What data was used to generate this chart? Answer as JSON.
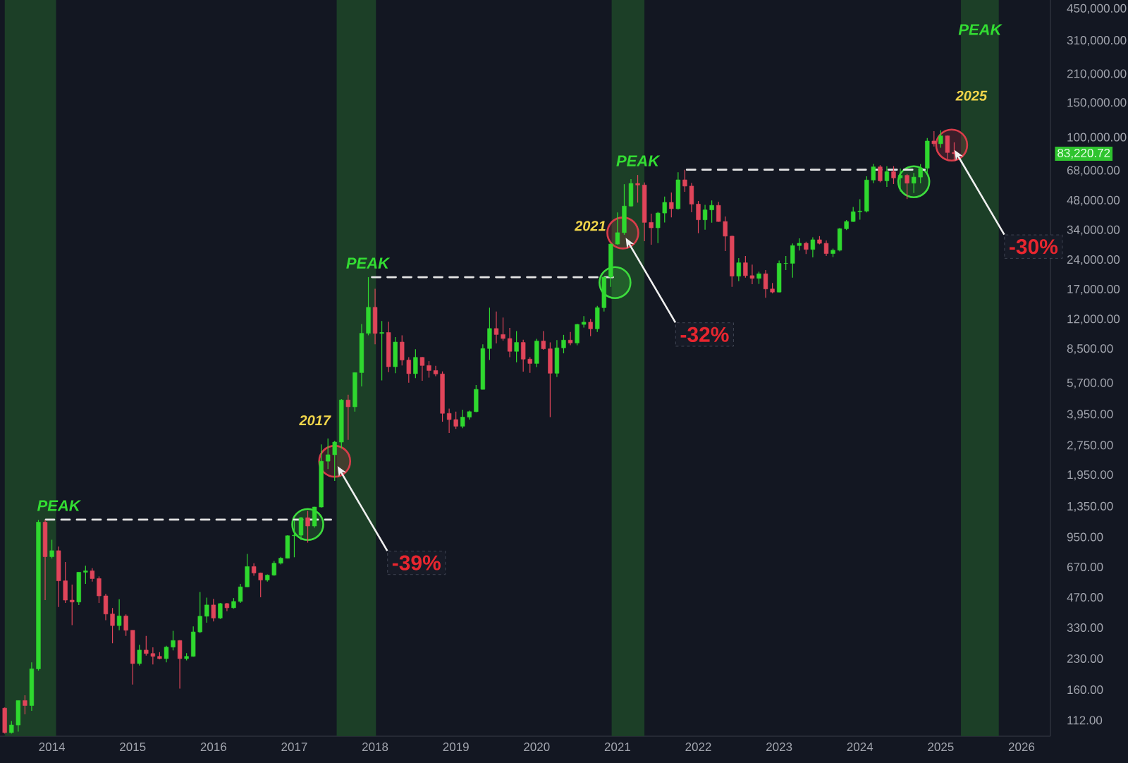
{
  "chart_data": {
    "type": "candlestick",
    "log": true,
    "xlim": [
      "2013-05-10",
      "2026-05-10"
    ],
    "ylim": [
      93,
      500000
    ],
    "xticks": [
      "2014",
      "2015",
      "2016",
      "2017",
      "2018",
      "2019",
      "2020",
      "2021",
      "2022",
      "2023",
      "2024",
      "2025",
      "2026"
    ],
    "yticks": [
      {
        "value": 112,
        "label": "112.00"
      },
      {
        "value": 160,
        "label": "160.00"
      },
      {
        "value": 230,
        "label": "230.00"
      },
      {
        "value": 330,
        "label": "330.00"
      },
      {
        "value": 470,
        "label": "470.00"
      },
      {
        "value": 670,
        "label": "670.00"
      },
      {
        "value": 950,
        "label": "950.00"
      },
      {
        "value": 1350,
        "label": "1,350.00"
      },
      {
        "value": 1950,
        "label": "1,950.00"
      },
      {
        "value": 2750,
        "label": "2,750.00"
      },
      {
        "value": 3950,
        "label": "3,950.00"
      },
      {
        "value": 5700,
        "label": "5,700.00"
      },
      {
        "value": 8500,
        "label": "8,500.00"
      },
      {
        "value": 12000,
        "label": "12,000.00"
      },
      {
        "value": 17000,
        "label": "17,000.00"
      },
      {
        "value": 24000,
        "label": "24,000.00"
      },
      {
        "value": 34000,
        "label": "34,000.00"
      },
      {
        "value": 48000,
        "label": "48,000.00"
      },
      {
        "value": 68000,
        "label": "68,000.00"
      },
      {
        "value": 100000,
        "label": "100,000.00"
      },
      {
        "value": 150000,
        "label": "150,000.00"
      },
      {
        "value": 210000,
        "label": "210,000.00"
      },
      {
        "value": 310000,
        "label": "310,000.00"
      },
      {
        "value": 450000,
        "label": "450,000.00"
      }
    ],
    "x": [
      "2013-06",
      "2013-07",
      "2013-08",
      "2013-09",
      "2013-10",
      "2013-11",
      "2013-12",
      "2014-01",
      "2014-02",
      "2014-03",
      "2014-04",
      "2014-05",
      "2014-06",
      "2014-07",
      "2014-08",
      "2014-09",
      "2014-10",
      "2014-11",
      "2014-12",
      "2015-01",
      "2015-02",
      "2015-03",
      "2015-04",
      "2015-05",
      "2015-06",
      "2015-07",
      "2015-08",
      "2015-09",
      "2015-10",
      "2015-11",
      "2015-12",
      "2016-01",
      "2016-02",
      "2016-03",
      "2016-04",
      "2016-05",
      "2016-06",
      "2016-07",
      "2016-08",
      "2016-09",
      "2016-10",
      "2016-11",
      "2016-12",
      "2017-01",
      "2017-02",
      "2017-03",
      "2017-04",
      "2017-05",
      "2017-06",
      "2017-07",
      "2017-08",
      "2017-09",
      "2017-10",
      "2017-11",
      "2017-12",
      "2018-01",
      "2018-02",
      "2018-03",
      "2018-04",
      "2018-05",
      "2018-06",
      "2018-07",
      "2018-08",
      "2018-09",
      "2018-10",
      "2018-11",
      "2018-12",
      "2019-01",
      "2019-02",
      "2019-03",
      "2019-04",
      "2019-05",
      "2019-06",
      "2019-07",
      "2019-08",
      "2019-09",
      "2019-10",
      "2019-11",
      "2019-12",
      "2020-01",
      "2020-02",
      "2020-03",
      "2020-04",
      "2020-05",
      "2020-06",
      "2020-07",
      "2020-08",
      "2020-09",
      "2020-10",
      "2020-11",
      "2020-12",
      "2021-01",
      "2021-02",
      "2021-03",
      "2021-04",
      "2021-05",
      "2021-06",
      "2021-07",
      "2021-08",
      "2021-09",
      "2021-10",
      "2021-11",
      "2021-12",
      "2022-01",
      "2022-02",
      "2022-03",
      "2022-04",
      "2022-05",
      "2022-06",
      "2022-07",
      "2022-08",
      "2022-09",
      "2022-10",
      "2022-11",
      "2022-12",
      "2023-01",
      "2023-02",
      "2023-03",
      "2023-04",
      "2023-05",
      "2023-06",
      "2023-07",
      "2023-08",
      "2023-09",
      "2023-10",
      "2023-11",
      "2023-12",
      "2024-01",
      "2024-02",
      "2024-03",
      "2024-04",
      "2024-05",
      "2024-06",
      "2024-07",
      "2024-08",
      "2024-09",
      "2024-10",
      "2024-11",
      "2024-12",
      "2025-01",
      "2025-02",
      "2025-03"
    ],
    "ohlc": [
      [
        129,
        130,
        96,
        97
      ],
      [
        97,
        111,
        96,
        106
      ],
      [
        106,
        141,
        98,
        141
      ],
      [
        141,
        150,
        120,
        133
      ],
      [
        133,
        220,
        125,
        204
      ],
      [
        204,
        1160,
        200,
        1130
      ],
      [
        1130,
        1163,
        455,
        755
      ],
      [
        755,
        920,
        740,
        810
      ],
      [
        810,
        850,
        420,
        570
      ],
      [
        570,
        710,
        440,
        455
      ],
      [
        455,
        545,
        340,
        445
      ],
      [
        445,
        630,
        430,
        630
      ],
      [
        630,
        680,
        550,
        640
      ],
      [
        640,
        660,
        565,
        585
      ],
      [
        585,
        600,
        440,
        478
      ],
      [
        478,
        490,
        360,
        387
      ],
      [
        387,
        415,
        275,
        338
      ],
      [
        338,
        460,
        320,
        378
      ],
      [
        378,
        385,
        300,
        320
      ],
      [
        320,
        320,
        170,
        217
      ],
      [
        217,
        270,
        212,
        254
      ],
      [
        254,
        300,
        238,
        244
      ],
      [
        244,
        262,
        215,
        236
      ],
      [
        236,
        248,
        228,
        230
      ],
      [
        230,
        267,
        220,
        263
      ],
      [
        263,
        318,
        253,
        284
      ],
      [
        284,
        285,
        162,
        230
      ],
      [
        230,
        245,
        225,
        236
      ],
      [
        236,
        335,
        235,
        314
      ],
      [
        314,
        500,
        310,
        377
      ],
      [
        377,
        468,
        350,
        430
      ],
      [
        430,
        462,
        355,
        369
      ],
      [
        369,
        440,
        365,
        437
      ],
      [
        437,
        440,
        400,
        416
      ],
      [
        416,
        466,
        412,
        448
      ],
      [
        448,
        550,
        440,
        531
      ],
      [
        531,
        780,
        530,
        673
      ],
      [
        673,
        700,
        605,
        624
      ],
      [
        624,
        627,
        470,
        575
      ],
      [
        575,
        615,
        565,
        609
      ],
      [
        609,
        718,
        605,
        700
      ],
      [
        700,
        754,
        690,
        742
      ],
      [
        742,
        970,
        740,
        964
      ],
      [
        964,
        1150,
        750,
        970
      ],
      [
        970,
        1200,
        915,
        1190
      ],
      [
        1190,
        1290,
        890,
        1080
      ],
      [
        1080,
        1350,
        1060,
        1348
      ],
      [
        1348,
        2800,
        1340,
        2300
      ],
      [
        2300,
        3000,
        2100,
        2480
      ],
      [
        2480,
        2920,
        1830,
        2875
      ],
      [
        2875,
        4750,
        2670,
        4700
      ],
      [
        4700,
        5000,
        2950,
        4340
      ],
      [
        4340,
        6470,
        4100,
        6470
      ],
      [
        6470,
        11400,
        5500,
        10230
      ],
      [
        10230,
        19700,
        10000,
        13860
      ],
      [
        13860,
        17200,
        9000,
        10220
      ],
      [
        10220,
        11800,
        5900,
        10330
      ],
      [
        10330,
        11700,
        6500,
        6930
      ],
      [
        6930,
        9800,
        6430,
        9240
      ],
      [
        9240,
        10000,
        7030,
        7490
      ],
      [
        7490,
        7750,
        5750,
        6390
      ],
      [
        6390,
        8500,
        6070,
        7730
      ],
      [
        7730,
        7760,
        5880,
        7030
      ],
      [
        7030,
        7400,
        6100,
        6630
      ],
      [
        6630,
        7000,
        6200,
        6370
      ],
      [
        6370,
        6560,
        3650,
        4020
      ],
      [
        4020,
        4250,
        3200,
        3740
      ],
      [
        3740,
        4100,
        3350,
        3460
      ],
      [
        3460,
        4200,
        3380,
        3850
      ],
      [
        3850,
        4150,
        3740,
        4100
      ],
      [
        4100,
        5600,
        4080,
        5320
      ],
      [
        5320,
        9000,
        5320,
        8570
      ],
      [
        8570,
        13800,
        7500,
        10820
      ],
      [
        10820,
        13200,
        9100,
        10090
      ],
      [
        10090,
        12300,
        9400,
        9630
      ],
      [
        9630,
        10900,
        7750,
        8290
      ],
      [
        8290,
        10500,
        7300,
        9200
      ],
      [
        9200,
        9500,
        6550,
        7570
      ],
      [
        7570,
        7750,
        6450,
        7200
      ],
      [
        7200,
        9600,
        6900,
        9350
      ],
      [
        9350,
        10500,
        8450,
        8540
      ],
      [
        8540,
        9200,
        3850,
        6420
      ],
      [
        6420,
        9450,
        6150,
        8630
      ],
      [
        8630,
        10050,
        8100,
        9450
      ],
      [
        9450,
        10400,
        8900,
        9140
      ],
      [
        9140,
        11450,
        8900,
        11350
      ],
      [
        11350,
        12500,
        10950,
        11650
      ],
      [
        11650,
        12100,
        9900,
        10780
      ],
      [
        10780,
        14100,
        10400,
        13800
      ],
      [
        13800,
        19850,
        13200,
        19700
      ],
      [
        19700,
        29300,
        17600,
        28990
      ],
      [
        28990,
        41950,
        28800,
        33110
      ],
      [
        33110,
        58300,
        32300,
        45140
      ],
      [
        45140,
        61800,
        45000,
        58790
      ],
      [
        58790,
        64900,
        47000,
        57720
      ],
      [
        57720,
        59500,
        30000,
        37330
      ],
      [
        37330,
        41300,
        28800,
        35040
      ],
      [
        35040,
        42200,
        29300,
        41630
      ],
      [
        41630,
        50500,
        37300,
        47150
      ],
      [
        47150,
        52900,
        39600,
        43790
      ],
      [
        43790,
        67000,
        43300,
        61320
      ],
      [
        61320,
        69000,
        53300,
        57000
      ],
      [
        57000,
        59100,
        42000,
        46200
      ],
      [
        46200,
        47900,
        32900,
        38480
      ],
      [
        38480,
        45800,
        34300,
        43190
      ],
      [
        43190,
        48200,
        37200,
        45540
      ],
      [
        45540,
        47400,
        37600,
        37710
      ],
      [
        37710,
        40000,
        26700,
        31790
      ],
      [
        31790,
        31950,
        17600,
        19940
      ],
      [
        19940,
        24600,
        18800,
        23300
      ],
      [
        23300,
        25200,
        19600,
        20050
      ],
      [
        20050,
        22800,
        18150,
        19430
      ],
      [
        19430,
        21000,
        18200,
        20490
      ],
      [
        20490,
        21400,
        15500,
        17170
      ],
      [
        17170,
        18400,
        16300,
        16550
      ],
      [
        16550,
        23900,
        16500,
        23140
      ],
      [
        23140,
        25200,
        21400,
        23150
      ],
      [
        23150,
        29200,
        19600,
        28480
      ],
      [
        28480,
        31000,
        26900,
        29250
      ],
      [
        29250,
        29800,
        25800,
        27220
      ],
      [
        27220,
        31400,
        24800,
        30480
      ],
      [
        30480,
        31800,
        28900,
        29230
      ],
      [
        29230,
        30200,
        25200,
        25940
      ],
      [
        25940,
        27500,
        24900,
        26970
      ],
      [
        26970,
        35000,
        26600,
        34670
      ],
      [
        34670,
        38400,
        34100,
        37710
      ],
      [
        37710,
        44700,
        37600,
        42280
      ],
      [
        42280,
        48900,
        38500,
        42580
      ],
      [
        42580,
        63900,
        41900,
        61200
      ],
      [
        61200,
        73800,
        59000,
        71330
      ],
      [
        71330,
        72800,
        59600,
        60640
      ],
      [
        60640,
        71900,
        56500,
        67490
      ],
      [
        67490,
        71900,
        58400,
        62680
      ],
      [
        62680,
        70000,
        53500,
        64620
      ],
      [
        64620,
        65600,
        49000,
        58970
      ],
      [
        58970,
        66500,
        52600,
        63330
      ],
      [
        63330,
        73600,
        58900,
        70220
      ],
      [
        70220,
        99800,
        66800,
        96450
      ],
      [
        96450,
        108300,
        90500,
        93430
      ],
      [
        93430,
        109300,
        89200,
        102430
      ],
      [
        102430,
        102800,
        78200,
        84350
      ],
      [
        84350,
        95000,
        76600,
        83220.72
      ]
    ],
    "colors": [
      "#e0455a",
      "#2fd82f",
      "#2fd82f",
      "#e0455a",
      "#2fd82f",
      "#2fd82f",
      "#e0455a",
      "#2fd82f",
      "#e0455a",
      "#e0455a",
      "#e0455a",
      "#2fd82f",
      "#2fd82f",
      "#e0455a",
      "#e0455a",
      "#e0455a",
      "#e0455a",
      "#2fd82f",
      "#e0455a",
      "#e0455a",
      "#2fd82f",
      "#e0455a",
      "#e0455a",
      "#e0455a",
      "#2fd82f",
      "#2fd82f",
      "#e0455a",
      "#2fd82f",
      "#2fd82f",
      "#2fd82f",
      "#2fd82f",
      "#e0455a",
      "#2fd82f",
      "#e0455a",
      "#2fd82f",
      "#2fd82f",
      "#2fd82f",
      "#e0455a",
      "#e0455a",
      "#2fd82f",
      "#2fd82f",
      "#2fd82f",
      "#2fd82f",
      "#2fd82f",
      "#2fd82f",
      "#e0455a",
      "#2fd82f",
      "#2fd82f",
      "#2fd82f",
      "#2fd82f",
      "#2fd82f",
      "#e0455a",
      "#2fd82f",
      "#2fd82f",
      "#2fd82f",
      "#e0455a",
      "#2fd82f",
      "#e0455a",
      "#2fd82f",
      "#e0455a",
      "#e0455a",
      "#2fd82f",
      "#e0455a",
      "#e0455a",
      "#e0455a",
      "#e0455a",
      "#e0455a",
      "#e0455a",
      "#2fd82f",
      "#2fd82f",
      "#2fd82f",
      "#2fd82f",
      "#2fd82f",
      "#e0455a",
      "#e0455a",
      "#e0455a",
      "#2fd82f",
      "#e0455a",
      "#e0455a",
      "#2fd82f",
      "#e0455a",
      "#e0455a",
      "#2fd82f",
      "#2fd82f",
      "#e0455a",
      "#2fd82f",
      "#2fd82f",
      "#e0455a",
      "#2fd82f",
      "#2fd82f",
      "#2fd82f",
      "#2fd82f",
      "#2fd82f",
      "#2fd82f",
      "#e0455a",
      "#e0455a",
      "#e0455a",
      "#2fd82f",
      "#2fd82f",
      "#e0455a",
      "#2fd82f",
      "#e0455a",
      "#e0455a",
      "#e0455a",
      "#2fd82f",
      "#2fd82f",
      "#e0455a",
      "#e0455a",
      "#e0455a",
      "#2fd82f",
      "#e0455a",
      "#e0455a",
      "#2fd82f",
      "#e0455a",
      "#e0455a",
      "#2fd82f",
      "#2fd82f",
      "#2fd82f",
      "#2fd82f",
      "#e0455a",
      "#2fd82f",
      "#e0455a",
      "#e0455a",
      "#2fd82f",
      "#2fd82f",
      "#2fd82f",
      "#2fd82f",
      "#2fd82f",
      "#2fd82f",
      "#2fd82f",
      "#e0455a",
      "#2fd82f",
      "#e0455a",
      "#2fd82f",
      "#e0455a",
      "#2fd82f",
      "#2fd82f",
      "#2fd82f",
      "#e0455a",
      "#2fd82f",
      "#e0455a",
      "#e0455a"
    ],
    "series": [
      {
        "type": "line",
        "color": "#e6e6e6",
        "line_style": "dashed",
        "x": [
          "2013-12-04",
          "2017-06-15"
        ],
        "values": [
          1163,
          1163
        ]
      },
      {
        "type": "line",
        "color": "#e6e6e6",
        "line_style": "dashed",
        "x": [
          "2017-12-17",
          "2020-12-20"
        ],
        "values": [
          19700,
          19700
        ]
      },
      {
        "type": "line",
        "color": "#e6e6e6",
        "line_style": "dashed",
        "x": [
          "2021-11-10",
          "2024-10-20"
        ],
        "values": [
          69000,
          69000
        ]
      },
      {
        "type": "scatter",
        "color": "#3ddc3d",
        "marker": "circle",
        "x": [
          "2017-03-01",
          "2020-12-20",
          "2024-09-01"
        ],
        "values": [
          1100,
          18500,
          60000
        ]
      },
      {
        "type": "scatter",
        "color": "#d93c4a",
        "marker": "circle",
        "x": [
          "2017-07-01",
          "2021-01-25",
          "2025-02-20"
        ],
        "values": [
          2300,
          33000,
          92000
        ]
      }
    ],
    "bands": [
      {
        "axis": "x",
        "from": "2013-06-01",
        "to": "2014-01-20",
        "color": "#1c3f27"
      },
      {
        "axis": "x",
        "from": "2017-07-10",
        "to": "2018-01-05",
        "color": "#1c3f27"
      },
      {
        "axis": "x",
        "from": "2020-12-05",
        "to": "2021-05-01",
        "color": "#1c3f27"
      },
      {
        "axis": "x",
        "from": "2025-04-01",
        "to": "2025-09-20",
        "color": "#1c3f27"
      }
    ],
    "annotations": [
      {
        "text": "PEAK",
        "x": "2014-02-01",
        "y": 1163
      },
      {
        "text": "PEAK",
        "x": "2017-11-28",
        "y": 19700
      },
      {
        "text": "PEAK",
        "x": "2021-04",
        "y": 64900
      },
      "PEAK",
      "2017",
      "2021",
      "2025",
      {
        "text": "-39%",
        "x": "2017-07-01",
        "y": 2300
      },
      {
        "text": "-32%",
        "x": "2021-01-25",
        "y": 33000
      },
      {
        "text": "-30%",
        "x": "2025-02-20",
        "y": 92000
      },
      "83,220.72"
    ]
  }
}
